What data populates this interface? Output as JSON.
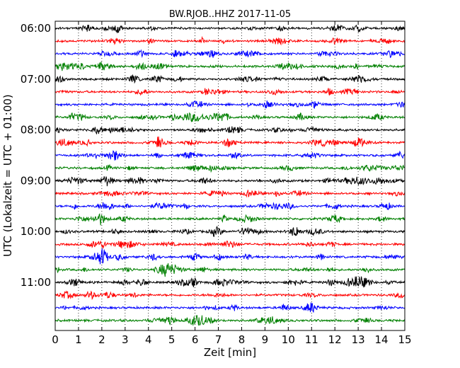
{
  "chart_data": {
    "type": "line",
    "subtype": "helicorder",
    "title": "BW.RJOB..HHZ 2017-11-05",
    "xlabel": "Zeit  [min]",
    "ylabel": "UTC (Lokalzeit = UTC + 01:00)",
    "xlim": [
      0,
      15
    ],
    "x_ticks": [
      "0",
      "1",
      "2",
      "3",
      "4",
      "5",
      "6",
      "7",
      "8",
      "9",
      "10",
      "11",
      "12",
      "13",
      "14",
      "15"
    ],
    "y_ticks": [
      "06:00",
      "07:00",
      "08:00",
      "09:00",
      "10:00",
      "11:00"
    ],
    "row_interval_min": 15,
    "first_row_time": "06:00",
    "row_count": 24,
    "line_colors": [
      "#000000",
      "#ff0000",
      "#0000ff",
      "#008000"
    ],
    "vertical_grid": "dotted",
    "signal": "continuous seismic trace, low-amplitude noise"
  }
}
